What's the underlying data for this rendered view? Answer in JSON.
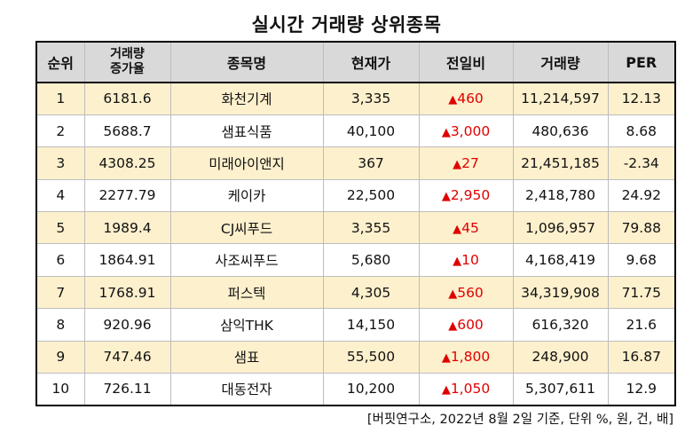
{
  "title": "실시간 거래량 상위종목",
  "headers": {
    "rank": "순위",
    "surge_line1": "거래량",
    "surge_line2": "증가율",
    "name": "종목명",
    "price": "현재가",
    "change": "전일비",
    "volume": "거래량",
    "per": "PER"
  },
  "change_symbol": "▲",
  "rows": [
    {
      "rank": "1",
      "surge": "6181.6",
      "name": "화천기계",
      "price": "3,335",
      "change": "460",
      "volume": "11,214,597",
      "per": "12.13"
    },
    {
      "rank": "2",
      "surge": "5688.7",
      "name": "샘표식품",
      "price": "40,100",
      "change": "3,000",
      "volume": "480,636",
      "per": "8.68"
    },
    {
      "rank": "3",
      "surge": "4308.25",
      "name": "미래아이앤지",
      "price": "367",
      "change": "27",
      "volume": "21,451,185",
      "per": "-2.34"
    },
    {
      "rank": "4",
      "surge": "2277.79",
      "name": "케이카",
      "price": "22,500",
      "change": "2,950",
      "volume": "2,418,780",
      "per": "24.92"
    },
    {
      "rank": "5",
      "surge": "1989.4",
      "name": "CJ씨푸드",
      "price": "3,355",
      "change": "45",
      "volume": "1,096,957",
      "per": "79.88"
    },
    {
      "rank": "6",
      "surge": "1864.91",
      "name": "사조씨푸드",
      "price": "5,680",
      "change": "10",
      "volume": "4,168,419",
      "per": "9.68"
    },
    {
      "rank": "7",
      "surge": "1768.91",
      "name": "퍼스텍",
      "price": "4,305",
      "change": "560",
      "volume": "34,319,908",
      "per": "71.75"
    },
    {
      "rank": "8",
      "surge": "920.96",
      "name": "삼익THK",
      "price": "14,150",
      "change": "600",
      "volume": "616,320",
      "per": "21.6"
    },
    {
      "rank": "9",
      "surge": "747.46",
      "name": "샘표",
      "price": "55,500",
      "change": "1,800",
      "volume": "248,900",
      "per": "16.87"
    },
    {
      "rank": "10",
      "surge": "726.11",
      "name": "대동전자",
      "price": "10,200",
      "change": "1,050",
      "volume": "5,307,611",
      "per": "12.9"
    }
  ],
  "colors": {
    "header_bg": "#d9d9d9",
    "odd_row_bg": "#fdf0cd",
    "change_red": "#e00000"
  },
  "source_note": "[버핏연구소, 2022년 8월 2일 기준, 단위 %, 원, 건, 배]"
}
